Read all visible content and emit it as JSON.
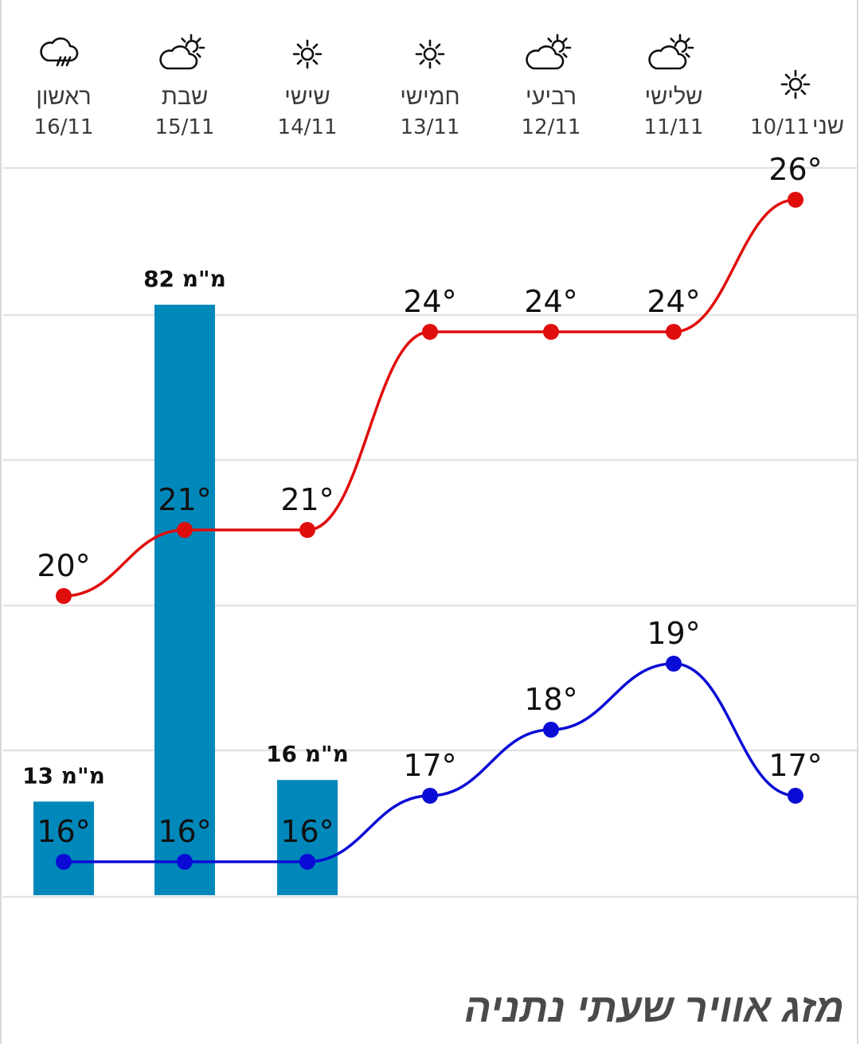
{
  "chart_data": {
    "type": "line",
    "title": "מזג אוויר שעתי נתניה",
    "days": [
      {
        "name": "ראשון",
        "date": "16/11",
        "icon": "rain-cloud-icon"
      },
      {
        "name": "שבת",
        "date": "15/11",
        "icon": "partly-cloudy-icon"
      },
      {
        "name": "שישי",
        "date": "14/11",
        "icon": "sun-icon"
      },
      {
        "name": "חמישי",
        "date": "13/11",
        "icon": "sun-icon"
      },
      {
        "name": "רביעי",
        "date": "12/11",
        "icon": "partly-cloudy-icon"
      },
      {
        "name": "שלישי",
        "date": "11/11",
        "icon": "partly-cloudy-icon"
      },
      {
        "name": "שני",
        "date": "10/11",
        "icon": "sun-icon"
      }
    ],
    "series": [
      {
        "values": [
          20,
          21,
          21,
          24,
          24,
          24,
          26
        ],
        "labels": [
          "20°",
          "21°",
          "21°",
          "24°",
          "24°",
          "24°",
          "26°"
        ],
        "color": "#e00d0d"
      },
      {
        "values": [
          16,
          16,
          16,
          17,
          18,
          19,
          17
        ],
        "labels": [
          "16°",
          "16°",
          "16°",
          "17°",
          "18°",
          "19°",
          "17°"
        ],
        "color": "#0b0bd6"
      }
    ],
    "rain": {
      "values": [
        13,
        82,
        16,
        null,
        null,
        null,
        null
      ],
      "labels": [
        "13 מ\"מ",
        "82 מ\"מ",
        "16 מ\"מ",
        "",
        "",
        "",
        ""
      ],
      "color": "#0088bb"
    },
    "grid": true
  }
}
